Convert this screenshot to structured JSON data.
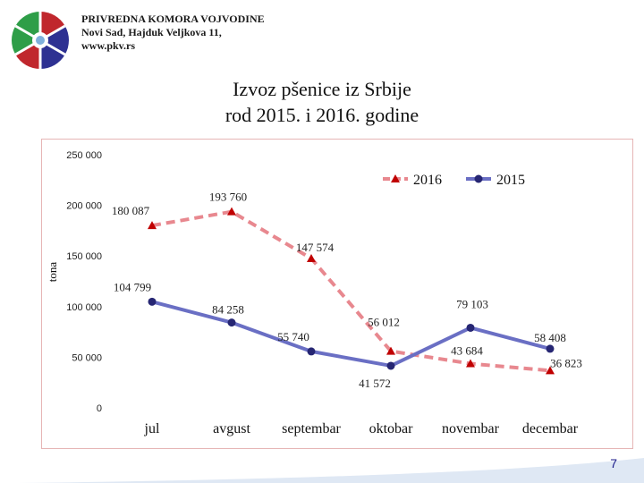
{
  "header": {
    "org_name": "PRIVREDNA KOMORA VOJVODINE",
    "address": "Novi Sad, Hajduk Veljkova 11,",
    "website": "www.pkv.rs"
  },
  "title_line1": "Izvoz pšenice iz Srbije",
  "title_line2": "rod 2015. i 2016. godine",
  "page_number": "7",
  "chart_data": {
    "type": "line",
    "ylabel": "tona",
    "categories": [
      "jul",
      "avgust",
      "septembar",
      "oktobar",
      "novembar",
      "decembar"
    ],
    "ylim": [
      0,
      250000
    ],
    "yticks": [
      "0",
      "50 000",
      "100 000",
      "150 000",
      "200 000",
      "250 000"
    ],
    "legend_position": "top-right",
    "grid": false,
    "series": [
      {
        "name": "2016",
        "color": "#e8888f",
        "marker_color": "#c00000",
        "style": "dashed",
        "values": [
          180087,
          193760,
          147574,
          56012,
          43684,
          36823
        ],
        "labels": [
          "180 087",
          "193 760",
          "147 574",
          "56 012",
          "43 684",
          "36 823"
        ]
      },
      {
        "name": "2015",
        "color": "#6a6fc4",
        "marker_color": "#262673",
        "style": "solid",
        "values": [
          104799,
          84258,
          55740,
          41572,
          79103,
          58408
        ],
        "labels": [
          "104 799",
          "84 258",
          "55 740",
          "41 572",
          "79 103",
          "58 408"
        ]
      }
    ]
  }
}
